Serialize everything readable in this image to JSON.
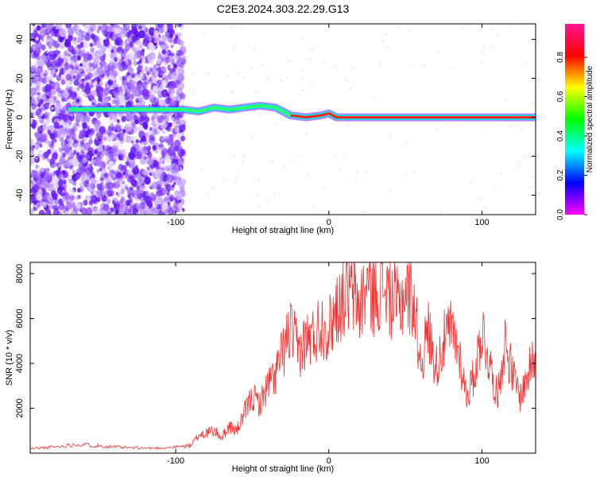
{
  "title": "C2E3.2024.303.22.29.G13",
  "chart_data": [
    {
      "type": "heatmap",
      "xlabel": "Height of straight line (km)",
      "ylabel": "Frequency (Hz)",
      "xlim": [
        -195,
        135
      ],
      "ylim": [
        -50,
        48
      ],
      "xticks": [
        -100,
        0,
        100
      ],
      "yticks": [
        -40,
        -20,
        0,
        20,
        40
      ],
      "colorbar": {
        "label": "Normalized spectral amplitude",
        "range": [
          0.0,
          0.97
        ],
        "ticks": [
          "0.0",
          "0.2",
          "0.4",
          "0.6",
          "0.8"
        ],
        "colors": [
          "#ff00ff",
          "#0000ff",
          "#00ffff",
          "#00ff00",
          "#ffff00",
          "#ff0000",
          "#ff1493"
        ]
      },
      "ridge": [
        {
          "x": -170,
          "y": 4
        },
        {
          "x": -95,
          "y": 4
        },
        {
          "x": -85,
          "y": 3
        },
        {
          "x": -75,
          "y": 5
        },
        {
          "x": -65,
          "y": 4
        },
        {
          "x": -55,
          "y": 5
        },
        {
          "x": -45,
          "y": 6
        },
        {
          "x": -35,
          "y": 5
        },
        {
          "x": -30,
          "y": 3
        },
        {
          "x": -25,
          "y": 1
        },
        {
          "x": -15,
          "y": 0
        },
        {
          "x": -5,
          "y": 1
        },
        {
          "x": 0,
          "y": 2
        },
        {
          "x": 5,
          "y": 0
        },
        {
          "x": 135,
          "y": 0
        }
      ]
    },
    {
      "type": "line",
      "xlabel": "Height of straight line (km)",
      "ylabel": "SNR (10 * v/v)",
      "xlim": [
        -195,
        135
      ],
      "ylim": [
        0,
        8500
      ],
      "xticks": [
        -100,
        0,
        100
      ],
      "yticks": [
        2000,
        4000,
        6000,
        8000
      ],
      "line_color": "#ee3333",
      "series": [
        {
          "x": [
            -195,
            -185,
            -175,
            -165,
            -155,
            -145,
            -135,
            -125,
            -115,
            -105,
            -95,
            -90,
            -85,
            -80,
            -75,
            -70,
            -65,
            -60,
            -55,
            -50,
            -45,
            -40,
            -35,
            -30,
            -25,
            -20,
            -15,
            -10,
            -5,
            0,
            5,
            10,
            15,
            20,
            25,
            30,
            35,
            40,
            45,
            50,
            55,
            60,
            65,
            70,
            75,
            80,
            85,
            90,
            95,
            100,
            105,
            110,
            115,
            120,
            125,
            130,
            135
          ],
          "y": [
            200,
            250,
            300,
            400,
            350,
            300,
            250,
            230,
            220,
            250,
            300,
            350,
            800,
            900,
            1000,
            700,
            1200,
            1000,
            1800,
            2500,
            2200,
            3000,
            3500,
            4500,
            5500,
            4500,
            5000,
            5200,
            5800,
            5500,
            6500,
            7000,
            7200,
            6500,
            7500,
            7000,
            7600,
            7000,
            6500,
            7200,
            7000,
            4000,
            5500,
            3800,
            5000,
            5500,
            4500,
            2500,
            3500,
            5500,
            4000,
            2500,
            5000,
            3500,
            2500,
            3500,
            4500
          ]
        }
      ]
    }
  ]
}
